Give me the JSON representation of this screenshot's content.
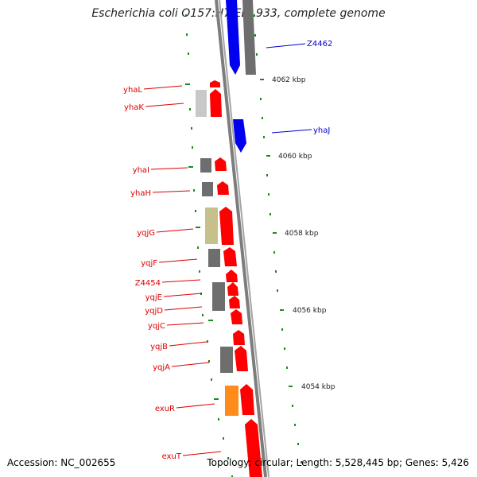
{
  "title": "Escherichia coli O157:H7 EDL933, complete genome",
  "footer": {
    "accession": "Accession: NC_002655",
    "summary": "Topology: circular; Length: 5,528,445 bp; Genes: 5,426"
  },
  "colors": {
    "forward_gene": "#ff0000",
    "reverse_gene": "#0000ee",
    "gray_block": "#6e6e6e",
    "light_gray_block": "#c8c8c8",
    "olive_block": "#c6c08a",
    "orange_block": "#ff8c1a",
    "backbone": "#8a8a8a",
    "tick": "#1a8a1a",
    "label_red": "#dd0000",
    "label_blue": "#0000cc"
  },
  "scale_labels": [
    {
      "id": "s4062",
      "text": "4062 kbp"
    },
    {
      "id": "s4060",
      "text": "4060 kbp"
    },
    {
      "id": "s4058",
      "text": "4058 kbp"
    },
    {
      "id": "s4056",
      "text": "4056 kbp"
    },
    {
      "id": "s4054",
      "text": "4054 kbp"
    }
  ],
  "genes": [
    {
      "id": "z4462",
      "name": "Z4462",
      "strand": "reverse"
    },
    {
      "id": "yhaj",
      "name": "yhaJ",
      "strand": "reverse"
    },
    {
      "id": "yhal",
      "name": "yhaL",
      "strand": "forward"
    },
    {
      "id": "yhak",
      "name": "yhaK",
      "strand": "forward"
    },
    {
      "id": "yhai",
      "name": "yhaI",
      "strand": "forward"
    },
    {
      "id": "yhah",
      "name": "yhaH",
      "strand": "forward"
    },
    {
      "id": "yqjg",
      "name": "yqjG",
      "strand": "forward"
    },
    {
      "id": "yqjf",
      "name": "yqjF",
      "strand": "forward"
    },
    {
      "id": "z4454",
      "name": "Z4454",
      "strand": "forward"
    },
    {
      "id": "yqje",
      "name": "yqjE",
      "strand": "forward"
    },
    {
      "id": "yqjd",
      "name": "yqjD",
      "strand": "forward"
    },
    {
      "id": "yqjc",
      "name": "yqjC",
      "strand": "forward"
    },
    {
      "id": "yqjb",
      "name": "yqjB",
      "strand": "forward"
    },
    {
      "id": "yqja",
      "name": "yqjA",
      "strand": "forward"
    },
    {
      "id": "exur",
      "name": "exuR",
      "strand": "forward"
    },
    {
      "id": "exut",
      "name": "exuT",
      "strand": "forward"
    }
  ]
}
